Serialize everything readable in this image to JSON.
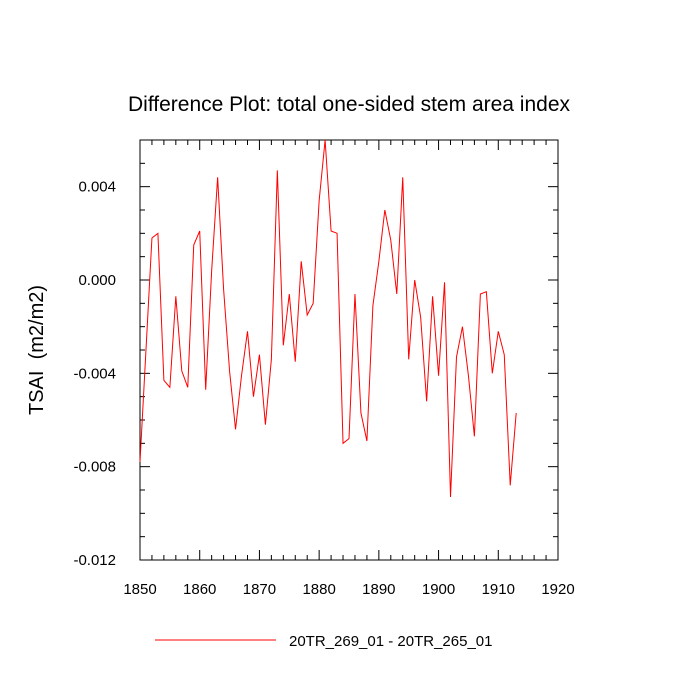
{
  "chart_data": {
    "type": "line",
    "title": "Difference Plot: total one-sided stem area index",
    "xlabel": "",
    "ylabel": "TSAI  (m2/m2)",
    "xlim": [
      1850,
      1920
    ],
    "ylim": [
      -0.012,
      0.006
    ],
    "xticks": [
      1850,
      1860,
      1870,
      1880,
      1890,
      1900,
      1910,
      1920
    ],
    "xtick_labels": [
      "1850",
      "1860",
      "1870",
      "1880",
      "1890",
      "1900",
      "1910",
      "1920"
    ],
    "yticks": [
      0.004,
      0.0,
      -0.004,
      -0.008,
      -0.012
    ],
    "ytick_labels": [
      "0.004",
      "0.000",
      "-0.004",
      "-0.008",
      "-0.012"
    ],
    "grid": false,
    "legend_position": "bottom-center",
    "series": [
      {
        "name": "20TR_269_01 - 20TR_265_01",
        "color": "#ff0000",
        "x": [
          1850,
          1851,
          1852,
          1853,
          1854,
          1855,
          1856,
          1857,
          1858,
          1859,
          1860,
          1861,
          1862,
          1863,
          1864,
          1865,
          1866,
          1867,
          1868,
          1869,
          1870,
          1871,
          1872,
          1873,
          1874,
          1875,
          1876,
          1877,
          1878,
          1879,
          1880,
          1881,
          1882,
          1883,
          1884,
          1885,
          1886,
          1887,
          1888,
          1889,
          1890,
          1891,
          1892,
          1893,
          1894,
          1895,
          1896,
          1897,
          1898,
          1899,
          1900,
          1901,
          1902,
          1903,
          1904,
          1905,
          1906,
          1907,
          1908,
          1909,
          1910,
          1911,
          1912,
          1913
        ],
        "y": [
          -0.0078,
          -0.003,
          0.0018,
          0.002,
          -0.0043,
          -0.0046,
          -0.0007,
          -0.0039,
          -0.0046,
          0.0015,
          0.0021,
          -0.0047,
          0.0004,
          0.0044,
          -0.0004,
          -0.0039,
          -0.0064,
          -0.0041,
          -0.0022,
          -0.005,
          -0.0032,
          -0.0062,
          -0.0034,
          0.0047,
          -0.0028,
          -0.0006,
          -0.0035,
          0.0008,
          -0.0015,
          -0.001,
          0.0034,
          0.006,
          0.0021,
          0.002,
          -0.007,
          -0.0068,
          -0.0006,
          -0.0057,
          -0.0069,
          -0.0011,
          0.0008,
          0.003,
          0.0017,
          -0.0006,
          0.0044,
          -0.0034,
          0.0,
          -0.0016,
          -0.0052,
          -0.0007,
          -0.0041,
          -0.0001,
          -0.0093,
          -0.0033,
          -0.002,
          -0.0041,
          -0.0067,
          -0.0006,
          -0.0005,
          -0.004,
          -0.0022,
          -0.0032,
          -0.0088,
          -0.0057
        ]
      }
    ]
  }
}
